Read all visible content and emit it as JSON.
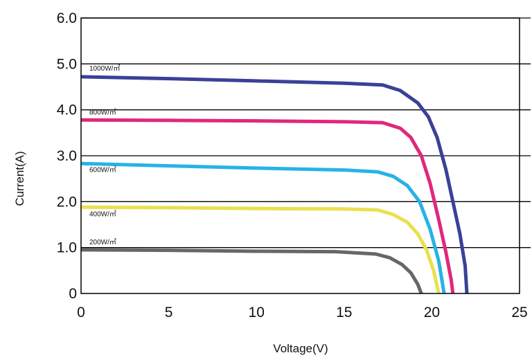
{
  "chart_data": {
    "type": "line",
    "xlabel": "Voltage(V)",
    "ylabel": "Current(A)",
    "xlim": [
      0,
      25
    ],
    "ylim": [
      0,
      6.0
    ],
    "xticks": [
      0,
      5,
      10,
      15,
      20,
      25
    ],
    "xtick_labels": [
      "0",
      "5",
      "10",
      "15",
      "20",
      "25"
    ],
    "yticks": [
      0,
      1.0,
      2.0,
      3.0,
      4.0,
      5.0,
      6.0
    ],
    "ytick_labels": [
      "0",
      "1.0",
      "2.0",
      "3.0",
      "4.0",
      "5.0",
      "6.0"
    ],
    "grid": "horizontal",
    "series": [
      {
        "name": "1000W/㎡",
        "color": "#3a4198",
        "points": [
          [
            0,
            4.72
          ],
          [
            5,
            4.68
          ],
          [
            10,
            4.63
          ],
          [
            15,
            4.58
          ],
          [
            17.2,
            4.54
          ],
          [
            18.2,
            4.42
          ],
          [
            19.2,
            4.15
          ],
          [
            19.8,
            3.85
          ],
          [
            20.3,
            3.4
          ],
          [
            20.8,
            2.7
          ],
          [
            21.2,
            2.0
          ],
          [
            21.6,
            1.3
          ],
          [
            21.9,
            0.6
          ],
          [
            22.0,
            0
          ]
        ]
      },
      {
        "name": "800W/㎡",
        "color": "#e0287c",
        "points": [
          [
            0,
            3.78
          ],
          [
            5,
            3.77
          ],
          [
            10,
            3.76
          ],
          [
            15,
            3.74
          ],
          [
            17.2,
            3.72
          ],
          [
            18.2,
            3.6
          ],
          [
            18.8,
            3.4
          ],
          [
            19.4,
            3.0
          ],
          [
            19.9,
            2.4
          ],
          [
            20.4,
            1.6
          ],
          [
            20.8,
            0.9
          ],
          [
            21.1,
            0.3
          ],
          [
            21.2,
            0
          ]
        ]
      },
      {
        "name": "600W/㎡",
        "color": "#27b3e6",
        "points": [
          [
            0,
            2.83
          ],
          [
            5,
            2.78
          ],
          [
            10,
            2.73
          ],
          [
            15,
            2.69
          ],
          [
            16.9,
            2.65
          ],
          [
            17.8,
            2.55
          ],
          [
            18.6,
            2.35
          ],
          [
            19.3,
            2.0
          ],
          [
            19.9,
            1.4
          ],
          [
            20.4,
            0.7
          ],
          [
            20.7,
            0
          ]
        ]
      },
      {
        "name": "400W/㎡",
        "color": "#e9e050",
        "points": [
          [
            0,
            1.88
          ],
          [
            5,
            1.87
          ],
          [
            10,
            1.85
          ],
          [
            15,
            1.84
          ],
          [
            16.9,
            1.82
          ],
          [
            17.8,
            1.72
          ],
          [
            18.6,
            1.55
          ],
          [
            19.2,
            1.3
          ],
          [
            19.7,
            0.95
          ],
          [
            20.1,
            0.5
          ],
          [
            20.4,
            0
          ]
        ]
      },
      {
        "name": "200W/㎡",
        "color": "#676767",
        "points": [
          [
            0,
            0.95
          ],
          [
            5,
            0.94
          ],
          [
            10,
            0.92
          ],
          [
            14.5,
            0.91
          ],
          [
            16.8,
            0.86
          ],
          [
            17.6,
            0.78
          ],
          [
            18.3,
            0.63
          ],
          [
            18.8,
            0.45
          ],
          [
            19.2,
            0.2
          ],
          [
            19.4,
            0
          ]
        ]
      }
    ]
  }
}
